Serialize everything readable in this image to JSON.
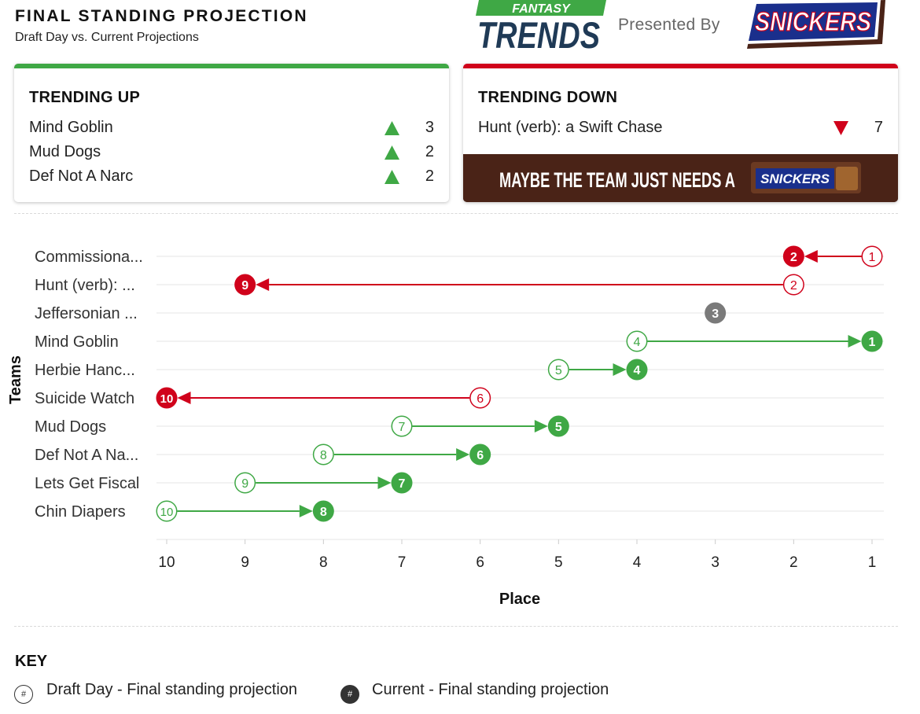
{
  "header": {
    "title": "FINAL STANDING PROJECTION",
    "subtitle": "Draft Day vs. Current Projections",
    "presented_by": "Presented By",
    "brand_logo": {
      "top_text": "FANTASY",
      "main_text": "TRENDS"
    },
    "sponsor_logo": "SNICKERS"
  },
  "trending_up": {
    "title": "TRENDING UP",
    "items": [
      {
        "name": "Mind Goblin",
        "change": "3"
      },
      {
        "name": "Mud Dogs",
        "change": "2"
      },
      {
        "name": "Def Not A Narc",
        "change": "2"
      }
    ]
  },
  "trending_down": {
    "title": "TRENDING DOWN",
    "items": [
      {
        "name": "Hunt (verb): a Swift Chase",
        "change": "7"
      }
    ],
    "banner_text": "MAYBE THE TEAM JUST NEEDS A",
    "banner_bar_text": "SNICKERS"
  },
  "colors": {
    "up": "#3fa845",
    "down": "#d0021b",
    "neutral": "#7a7a7a",
    "banner_bg": "#4a2317"
  },
  "chart_data": {
    "type": "dumbbell",
    "xlabel": "Place",
    "ylabel": "Teams",
    "xlim": [
      10,
      1
    ],
    "x_ticks": [
      "10",
      "9",
      "8",
      "7",
      "6",
      "5",
      "4",
      "3",
      "2",
      "1"
    ],
    "categories": [
      "Commissiona...",
      "Hunt (verb): ...",
      "Jeffersonian ...",
      "Mind Goblin",
      "Herbie Hanc...",
      "Suicide Watch",
      "Mud Dogs",
      "Def Not A Na...",
      "Lets Get Fiscal",
      "Chin Diapers"
    ],
    "series": [
      {
        "name": "Draft Day - Final standing projection",
        "values": [
          1,
          2,
          3,
          4,
          5,
          6,
          7,
          8,
          9,
          10
        ]
      },
      {
        "name": "Current - Final standing projection",
        "values": [
          2,
          9,
          3,
          1,
          4,
          10,
          5,
          6,
          7,
          8
        ]
      }
    ]
  },
  "key": {
    "title": "KEY",
    "open_symbol": "#",
    "filled_symbol": "#",
    "draft_label": "Draft Day - Final standing projection",
    "current_label": "Current - Final standing projection"
  }
}
